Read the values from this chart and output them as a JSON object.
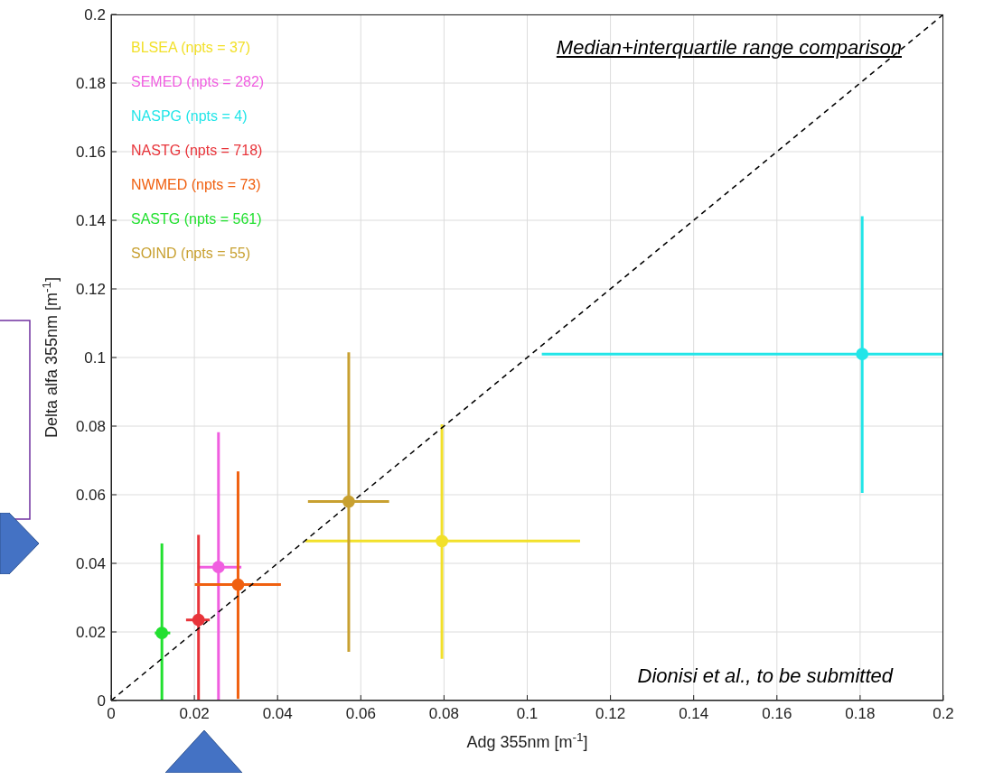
{
  "chart_data": {
    "type": "scatter",
    "xlabel": "Adg 355nm [m$^{-1}$]",
    "ylabel": "Delta alfa 355nm [m$^{-1}$]",
    "annotations": [
      "Median+interquartile range comparison",
      "Dionisi et al., to be submitted"
    ],
    "xlim": [
      0,
      0.2
    ],
    "ylim": [
      0,
      0.2
    ],
    "xticks": [
      0,
      0.02,
      0.04,
      0.06,
      0.08,
      0.1,
      0.12,
      0.14,
      0.16,
      0.18,
      0.2
    ],
    "yticks": [
      0,
      0.02,
      0.04,
      0.06,
      0.08,
      0.1,
      0.12,
      0.14,
      0.16,
      0.18,
      0.2
    ],
    "grid": true,
    "legend": "top left",
    "marker": "circle",
    "series": [
      {
        "name": "BLSEA (npts = 37)",
        "color": "#f2e02a",
        "x": [
          0.0795
        ],
        "values": [
          0.0465
        ],
        "xerrors": [
          [
            0.0467,
            0.1127
          ]
        ],
        "errors": [
          [
            0.0122,
            0.0805
          ]
        ]
      },
      {
        "name": "SEMED (npts = 282)",
        "color": "#f05ee0",
        "x": [
          0.0258
        ],
        "values": [
          0.0389
        ],
        "xerrors": [
          [
            0.0208,
            0.0313
          ]
        ],
        "errors": [
          [
            0,
            0.0782
          ]
        ]
      },
      {
        "name": "NASPG (npts = 4)",
        "color": "#22e5e8",
        "x": [
          0.1805
        ],
        "values": [
          0.101
        ],
        "xerrors": [
          [
            0.1035,
            0.2
          ]
        ],
        "errors": [
          [
            0.0605,
            0.1412
          ]
        ]
      },
      {
        "name": "NASTG (npts = 718)",
        "color": "#e8343a",
        "x": [
          0.021
        ],
        "values": [
          0.0235
        ],
        "xerrors": [
          [
            0.018,
            0.0237
          ]
        ],
        "errors": [
          [
            0,
            0.0483
          ]
        ]
      },
      {
        "name": "NWMED (npts = 73)",
        "color": "#f06010",
        "x": [
          0.0305
        ],
        "values": [
          0.0338
        ],
        "xerrors": [
          [
            0.0201,
            0.0408
          ]
        ],
        "errors": [
          [
            0.0005,
            0.0668
          ]
        ]
      },
      {
        "name": "SASTG (npts = 561)",
        "color": "#22e030",
        "x": [
          0.0122
        ],
        "values": [
          0.0197
        ],
        "xerrors": [
          [
            0.0105,
            0.0142
          ]
        ],
        "errors": [
          [
            0,
            0.0458
          ]
        ]
      },
      {
        "name": "SOIND (npts = 55)",
        "color": "#c8a030",
        "x": [
          0.0571
        ],
        "values": [
          0.058
        ],
        "xerrors": [
          [
            0.0473,
            0.0668
          ]
        ],
        "errors": [
          [
            0.0142,
            0.1015
          ]
        ]
      },
      {
        "type": "line",
        "color": "#000000",
        "line_style": "dashed",
        "marker": "none",
        "x": [
          0,
          0.2
        ],
        "values": [
          0,
          0.2
        ]
      }
    ]
  }
}
